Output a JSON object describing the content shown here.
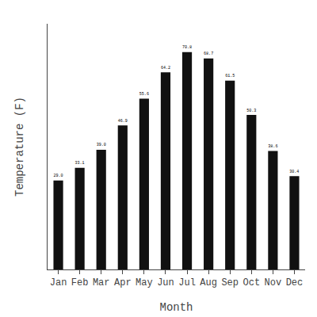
{
  "chart_data": {
    "type": "bar",
    "categories": [
      "Jan",
      "Feb",
      "Mar",
      "Apr",
      "May",
      "Jun",
      "Jul",
      "Aug",
      "Sep",
      "Oct",
      "Nov",
      "Dec"
    ],
    "values": [
      29.0,
      33.1,
      39.0,
      46.9,
      55.6,
      64.2,
      70.8,
      68.7,
      61.5,
      50.3,
      38.6,
      30.4
    ],
    "value_labels": [
      "29.0",
      "33.1",
      "39.0",
      "46.9",
      "55.6",
      "64.2",
      "70.8",
      "68.7",
      "61.5",
      "50.3",
      "38.6",
      "30.4"
    ],
    "data_labels": true,
    "color": "#111111",
    "x_label": "Month",
    "y_label": "Temperature (F)",
    "ylim": [
      0,
      80
    ],
    "tick_labels": "x",
    "grid": false
  }
}
